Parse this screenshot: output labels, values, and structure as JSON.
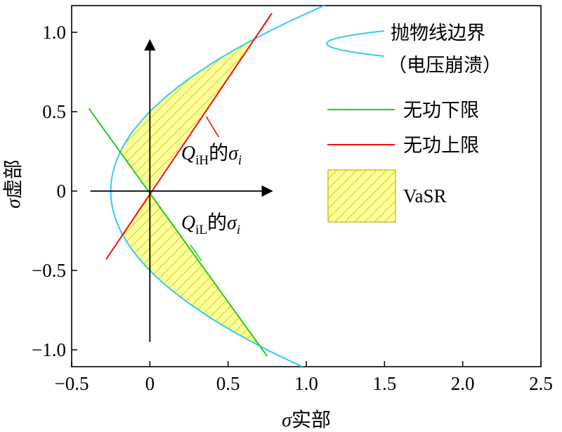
{
  "chart_data": {
    "type": "line",
    "xlabel_var": "σ",
    "xlabel_text": "实部",
    "ylabel_var": "σ",
    "ylabel_text": "虚部",
    "xlim": [
      -0.5,
      2.5
    ],
    "ylim": [
      -1.1,
      1.18
    ],
    "xticks": [
      -0.5,
      0,
      0.5,
      1.0,
      1.5,
      2.0,
      2.5
    ],
    "xtick_labels": [
      "−0.5",
      "0",
      "0.5",
      "1.0",
      "1.5",
      "2.0",
      "2.5"
    ],
    "yticks": [
      -1.0,
      -0.5,
      0,
      0.5,
      1.0
    ],
    "ytick_labels": [
      "−1.0",
      "−0.5",
      "0",
      "0.5",
      "1.0"
    ],
    "series": [
      {
        "name": "抛物线边界",
        "name2": "（电压崩溃）",
        "kind": "parabola",
        "equation": "x = y^2 - 0.25",
        "y_range": [
          -1.16,
          1.22
        ],
        "color": "#33ccee"
      },
      {
        "name": "无功下限",
        "kind": "line",
        "points": [
          [
            -0.39,
            0.52
          ],
          [
            0.75,
            -1.04
          ]
        ],
        "color": "#22cc22"
      },
      {
        "name": "无功上限",
        "kind": "line",
        "points": [
          [
            -0.28,
            -0.43
          ],
          [
            0.78,
            1.12
          ]
        ],
        "color": "#ee1111"
      }
    ],
    "shaded_region": {
      "name": "VaSR",
      "fill": "#ffff99",
      "hatch": "#b8b800"
    },
    "annotations": [
      {
        "var": "Q",
        "sub": "iH",
        "text": "的",
        "var2": "σ",
        "sub2": "i",
        "point": [
          0.36,
          0.47
        ],
        "text_at": [
          0.42,
          0.22
        ]
      },
      {
        "var": "Q",
        "sub": "iL",
        "text": "的",
        "var2": "σ",
        "sub2": "i",
        "point": [
          0.33,
          -0.44
        ],
        "text_at": [
          0.42,
          -0.26
        ]
      }
    ],
    "arrow_axes": {
      "h": [
        -0.38,
        0.78
      ],
      "v": [
        -0.95,
        0.95
      ]
    }
  }
}
